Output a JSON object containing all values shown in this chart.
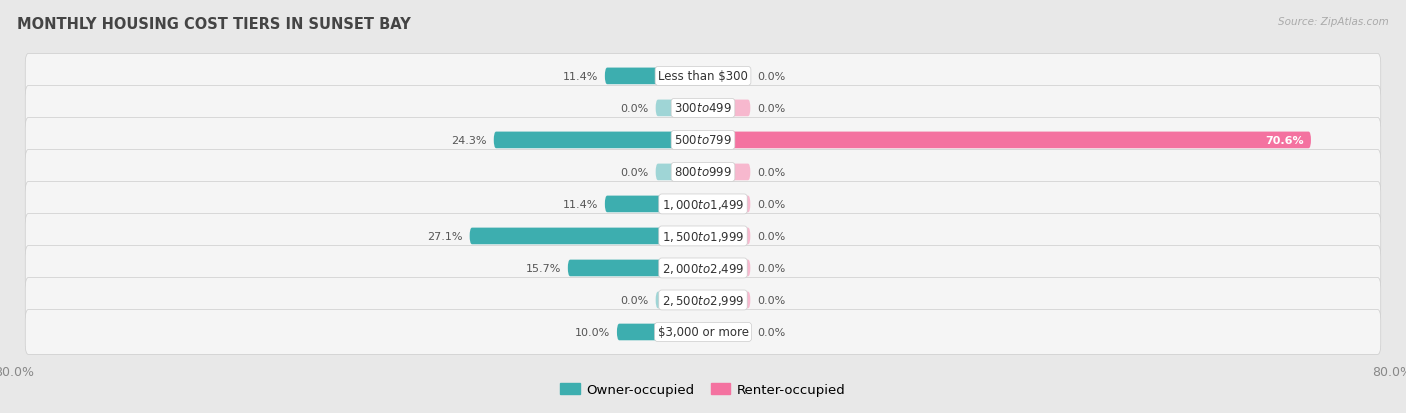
{
  "title": "MONTHLY HOUSING COST TIERS IN SUNSET BAY",
  "source": "Source: ZipAtlas.com",
  "categories": [
    "Less than $300",
    "$300 to $499",
    "$500 to $799",
    "$800 to $999",
    "$1,000 to $1,499",
    "$1,500 to $1,999",
    "$2,000 to $2,499",
    "$2,500 to $2,999",
    "$3,000 or more"
  ],
  "owner_values": [
    11.4,
    0.0,
    24.3,
    0.0,
    11.4,
    27.1,
    15.7,
    0.0,
    10.0
  ],
  "renter_values": [
    0.0,
    0.0,
    70.6,
    0.0,
    0.0,
    0.0,
    0.0,
    0.0,
    0.0
  ],
  "owner_color_active": "#3daeaf",
  "owner_color_inactive": "#9fd5d6",
  "renter_color_active": "#f472a0",
  "renter_color_inactive": "#f7b8ce",
  "background_color": "#e8e8e8",
  "row_bg_color": "#f5f5f5",
  "axis_limit": 80.0,
  "min_bar_width": 5.5,
  "legend_owner": "Owner-occupied",
  "legend_renter": "Renter-occupied",
  "title_color": "#444444",
  "source_color": "#aaaaaa",
  "label_fontsize": 8.5,
  "pct_fontsize": 8.0,
  "title_fontsize": 10.5
}
